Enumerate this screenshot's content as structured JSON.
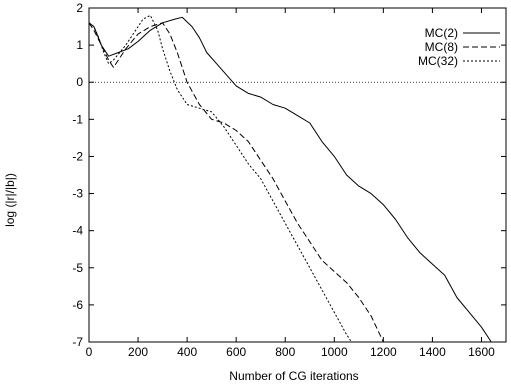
{
  "chart_data": {
    "type": "line",
    "title": "",
    "xlabel": "Number of CG iterations",
    "ylabel": "log (|r|/|b|)",
    "xlim": [
      0,
      1700
    ],
    "ylim": [
      -7,
      2
    ],
    "xticks": [
      0,
      200,
      400,
      600,
      800,
      1000,
      1200,
      1400,
      1600
    ],
    "yticks": [
      2,
      1,
      0,
      -1,
      -2,
      -3,
      -4,
      -5,
      -6,
      -7
    ],
    "grid": false,
    "legend_position": "top-right",
    "reference_line": {
      "y": 0,
      "style": "dotted"
    },
    "series": [
      {
        "name": "MC(2)",
        "style": "solid",
        "x": [
          0,
          20,
          50,
          80,
          120,
          160,
          200,
          250,
          300,
          350,
          380,
          420,
          450,
          480,
          520,
          560,
          600,
          650,
          700,
          750,
          800,
          850,
          900,
          950,
          1000,
          1050,
          1100,
          1150,
          1200,
          1250,
          1300,
          1350,
          1400,
          1450,
          1500,
          1550,
          1600,
          1640
        ],
        "y": [
          1.6,
          1.5,
          1.0,
          0.7,
          0.8,
          0.9,
          1.1,
          1.4,
          1.6,
          1.7,
          1.75,
          1.5,
          1.2,
          0.8,
          0.5,
          0.2,
          -0.1,
          -0.3,
          -0.4,
          -0.6,
          -0.7,
          -0.9,
          -1.1,
          -1.6,
          -2.0,
          -2.5,
          -2.8,
          -3.0,
          -3.3,
          -3.7,
          -4.2,
          -4.6,
          -4.9,
          -5.2,
          -5.8,
          -6.2,
          -6.6,
          -7.0
        ]
      },
      {
        "name": "MC(8)",
        "style": "dashed",
        "x": [
          0,
          20,
          50,
          80,
          100,
          150,
          200,
          250,
          300,
          330,
          360,
          400,
          450,
          500,
          550,
          600,
          650,
          700,
          750,
          800,
          850,
          900,
          950,
          1000,
          1050,
          1100,
          1150,
          1200
        ],
        "y": [
          1.6,
          1.4,
          1.0,
          0.6,
          0.4,
          0.9,
          1.3,
          1.5,
          1.6,
          1.3,
          0.8,
          0.0,
          -0.6,
          -1.0,
          -1.1,
          -1.3,
          -1.6,
          -2.1,
          -2.6,
          -3.2,
          -3.8,
          -4.3,
          -4.8,
          -5.1,
          -5.4,
          -5.8,
          -6.3,
          -7.0
        ]
      },
      {
        "name": "MC(32)",
        "style": "dotted",
        "x": [
          0,
          20,
          40,
          60,
          80,
          100,
          150,
          200,
          220,
          250,
          280,
          300,
          330,
          360,
          400,
          450,
          500,
          550,
          600,
          650,
          700,
          750,
          800,
          850,
          900,
          950,
          1000,
          1050,
          1070
        ],
        "y": [
          1.6,
          1.5,
          1.2,
          0.8,
          0.5,
          0.6,
          1.0,
          1.5,
          1.7,
          1.8,
          1.4,
          0.9,
          0.3,
          -0.2,
          -0.6,
          -0.7,
          -0.8,
          -1.2,
          -1.7,
          -2.2,
          -2.6,
          -3.2,
          -3.8,
          -4.4,
          -5.0,
          -5.6,
          -6.2,
          -6.8,
          -7.0
        ]
      }
    ]
  }
}
